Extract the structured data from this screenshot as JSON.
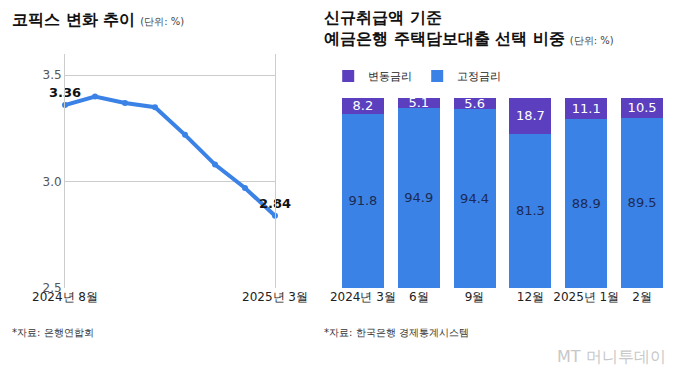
{
  "credit": "MT 머니투데이",
  "chart_data": [
    {
      "type": "line",
      "title": "코픽스 변화 추이",
      "unit": "(단위: %)",
      "source": "*자료: 은행연합회",
      "categories": [
        "2024년 8월",
        null,
        null,
        null,
        null,
        null,
        null,
        "2025년 3월"
      ],
      "values": [
        3.36,
        3.4,
        3.37,
        3.35,
        3.22,
        3.08,
        2.97,
        2.84
      ],
      "value_labels": [
        "3.36",
        null,
        null,
        null,
        null,
        null,
        null,
        "2.84"
      ],
      "color": "#3b82e6",
      "marker": "circle",
      "ylim": [
        2.5,
        3.6
      ],
      "yticks": [
        2.5,
        {
          "value": 3,
          "label": "3.0"
        },
        3.5
      ],
      "grid": true
    },
    {
      "type": "bar",
      "stacked": true,
      "title": "신규취급액 기준\n예금은행 주택담보대출 선택 비중",
      "unit": "(단위: %)",
      "source": "*자료: 한국은행 경제통계시스템",
      "categories": [
        "2024년 3월",
        "6월",
        "9월",
        "12월",
        "2025년 1월",
        "2월"
      ],
      "series": [
        {
          "name": "고정금리",
          "color": "#3b82e6",
          "values": [
            91.8,
            94.9,
            94.4,
            81.3,
            88.9,
            89.5
          ]
        },
        {
          "name": "변동금리",
          "color": "#5b3fbf",
          "values": [
            8.2,
            5.1,
            5.6,
            18.7,
            11.1,
            10.5
          ]
        }
      ],
      "ylim": [
        0,
        100
      ],
      "tick_labels": "x",
      "data_labels": true,
      "legend": "top-left",
      "grid": false
    }
  ]
}
